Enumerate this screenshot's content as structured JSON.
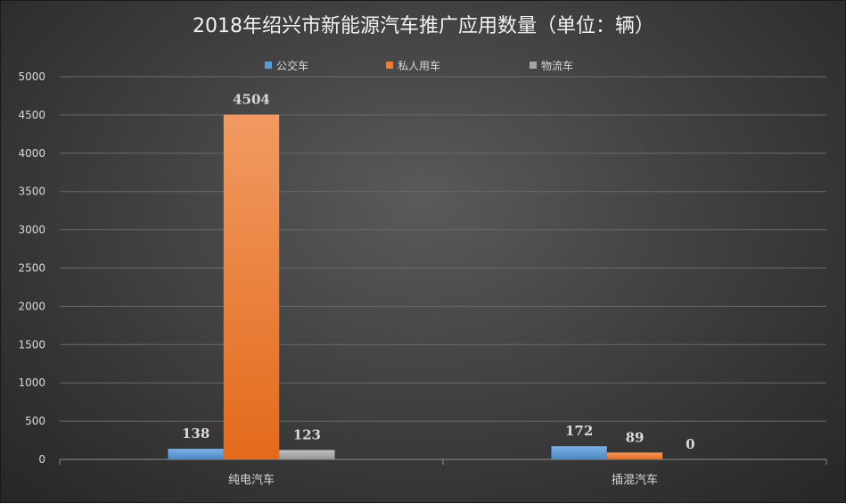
{
  "chart_data": {
    "type": "bar",
    "title": "2018年绍兴市新能源汽车推广应用数量（单位：辆）",
    "categories": [
      "纯电汽车",
      "插混汽车"
    ],
    "series": [
      {
        "name": "公交车",
        "values": [
          138,
          172
        ],
        "color": "#5b9bd5"
      },
      {
        "name": "私人用车",
        "values": [
          4504,
          89
        ],
        "color": "#ed7d31"
      },
      {
        "name": "物流车",
        "values": [
          123,
          0
        ],
        "color": "#a5a5a5"
      }
    ],
    "ylim": [
      0,
      5000
    ],
    "yticks": [
      0,
      500,
      1000,
      1500,
      2000,
      2500,
      3000,
      3500,
      4000,
      4500,
      5000
    ],
    "grid": true,
    "legend": "top"
  }
}
